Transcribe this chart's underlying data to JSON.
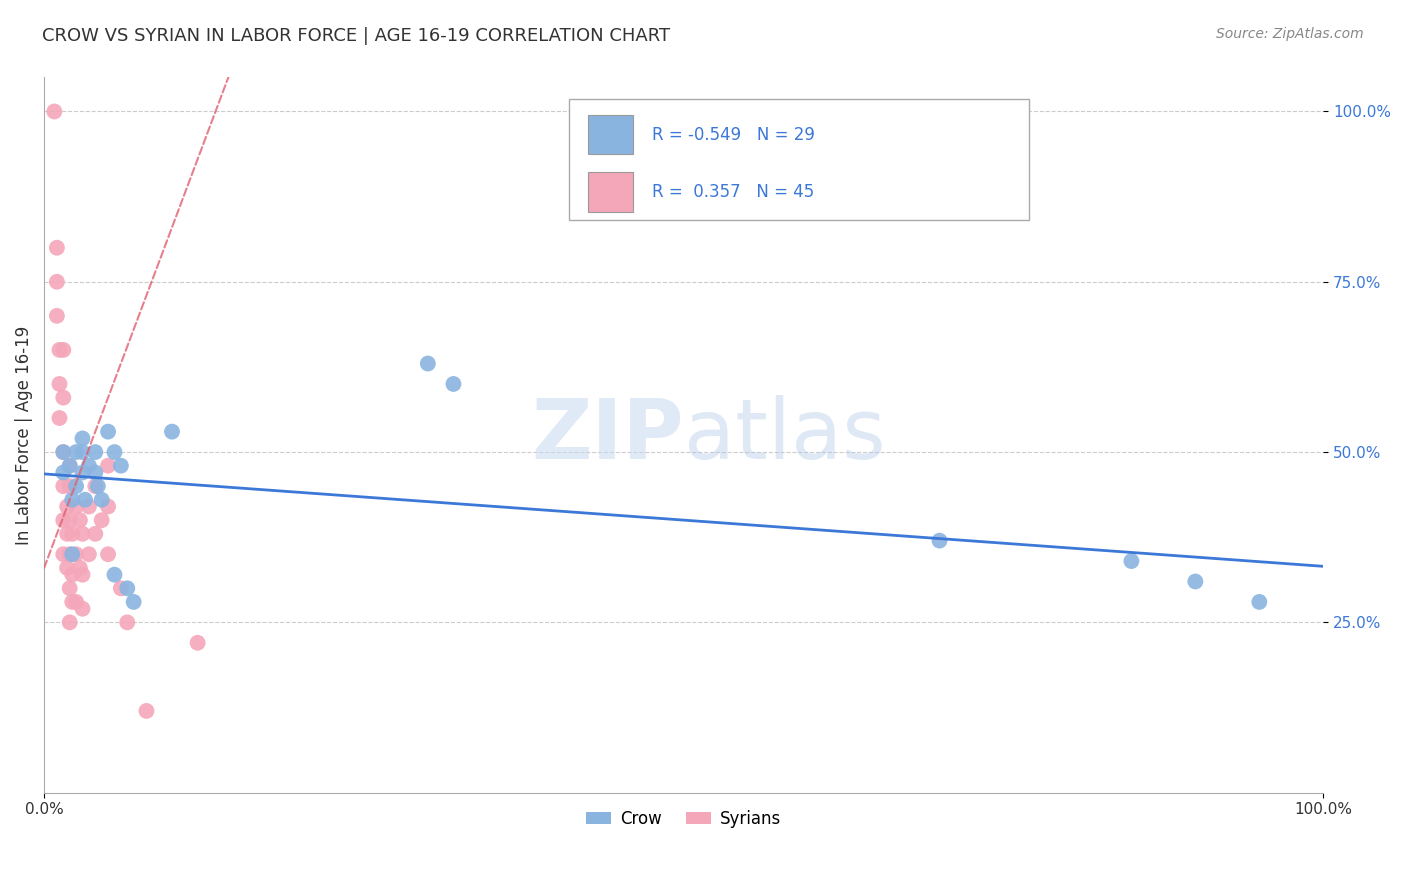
{
  "title": "CROW VS SYRIAN IN LABOR FORCE | AGE 16-19 CORRELATION CHART",
  "source_text": "Source: ZipAtlas.com",
  "ylabel": "In Labor Force | Age 16-19",
  "crow_color": "#8ab4e0",
  "syrian_color": "#f4a7b9",
  "crow_line_color": "#3c78d8",
  "syrian_line_color": "#e06070",
  "crow_R": -0.549,
  "crow_N": 29,
  "syrian_R": 0.357,
  "syrian_N": 45,
  "watermark_zip": "ZIP",
  "watermark_atlas": "atlas",
  "crow_points": [
    [
      0.015,
      0.5
    ],
    [
      0.015,
      0.47
    ],
    [
      0.02,
      0.48
    ],
    [
      0.022,
      0.43
    ],
    [
      0.022,
      0.35
    ],
    [
      0.025,
      0.5
    ],
    [
      0.025,
      0.45
    ],
    [
      0.03,
      0.52
    ],
    [
      0.03,
      0.5
    ],
    [
      0.03,
      0.47
    ],
    [
      0.032,
      0.43
    ],
    [
      0.035,
      0.48
    ],
    [
      0.04,
      0.5
    ],
    [
      0.04,
      0.47
    ],
    [
      0.042,
      0.45
    ],
    [
      0.045,
      0.43
    ],
    [
      0.05,
      0.53
    ],
    [
      0.055,
      0.5
    ],
    [
      0.055,
      0.32
    ],
    [
      0.06,
      0.48
    ],
    [
      0.065,
      0.3
    ],
    [
      0.07,
      0.28
    ],
    [
      0.1,
      0.53
    ],
    [
      0.3,
      0.63
    ],
    [
      0.32,
      0.6
    ],
    [
      0.7,
      0.37
    ],
    [
      0.85,
      0.34
    ],
    [
      0.9,
      0.31
    ],
    [
      0.95,
      0.28
    ]
  ],
  "syrian_points": [
    [
      0.008,
      1.0
    ],
    [
      0.01,
      0.8
    ],
    [
      0.01,
      0.75
    ],
    [
      0.01,
      0.7
    ],
    [
      0.012,
      0.65
    ],
    [
      0.012,
      0.6
    ],
    [
      0.012,
      0.55
    ],
    [
      0.015,
      0.65
    ],
    [
      0.015,
      0.58
    ],
    [
      0.015,
      0.5
    ],
    [
      0.015,
      0.45
    ],
    [
      0.015,
      0.4
    ],
    [
      0.015,
      0.35
    ],
    [
      0.018,
      0.42
    ],
    [
      0.018,
      0.38
    ],
    [
      0.018,
      0.33
    ],
    [
      0.02,
      0.48
    ],
    [
      0.02,
      0.45
    ],
    [
      0.02,
      0.4
    ],
    [
      0.02,
      0.35
    ],
    [
      0.02,
      0.3
    ],
    [
      0.02,
      0.25
    ],
    [
      0.022,
      0.38
    ],
    [
      0.022,
      0.32
    ],
    [
      0.022,
      0.28
    ],
    [
      0.025,
      0.42
    ],
    [
      0.025,
      0.35
    ],
    [
      0.025,
      0.28
    ],
    [
      0.028,
      0.4
    ],
    [
      0.028,
      0.33
    ],
    [
      0.03,
      0.38
    ],
    [
      0.03,
      0.32
    ],
    [
      0.03,
      0.27
    ],
    [
      0.035,
      0.42
    ],
    [
      0.035,
      0.35
    ],
    [
      0.04,
      0.45
    ],
    [
      0.04,
      0.38
    ],
    [
      0.045,
      0.4
    ],
    [
      0.05,
      0.48
    ],
    [
      0.05,
      0.42
    ],
    [
      0.05,
      0.35
    ],
    [
      0.06,
      0.3
    ],
    [
      0.065,
      0.25
    ],
    [
      0.08,
      0.12
    ],
    [
      0.12,
      0.22
    ]
  ]
}
